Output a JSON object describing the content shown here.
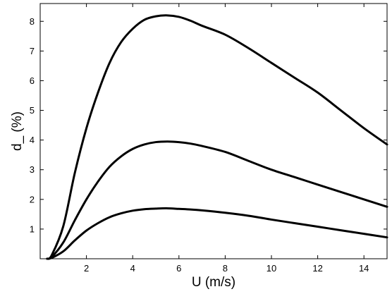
{
  "chart_data": {
    "type": "line",
    "title": "",
    "xlabel": "U (m/s)",
    "ylabel": "d_  (%)",
    "xlim": [
      0,
      15
    ],
    "ylim": [
      0,
      8.6
    ],
    "xticks": [
      2,
      4,
      6,
      8,
      10,
      12,
      14
    ],
    "yticks": [
      1,
      2,
      3,
      4,
      5,
      6,
      7,
      8
    ],
    "grid": false,
    "line_color": "#000000",
    "series": [
      {
        "x": [
          0.3,
          0.5,
          1,
          1.5,
          2,
          2.5,
          3,
          3.5,
          4,
          4.5,
          5,
          5.5,
          6,
          6.5,
          7,
          8,
          9,
          10,
          11,
          12,
          13,
          14,
          15
        ],
        "values": [
          0,
          0.12,
          1.1,
          2.9,
          4.4,
          5.6,
          6.6,
          7.3,
          7.75,
          8.05,
          8.17,
          8.2,
          8.15,
          8.02,
          7.85,
          7.55,
          7.1,
          6.6,
          6.1,
          5.6,
          5.0,
          4.4,
          3.85
        ]
      },
      {
        "x": [
          0.3,
          0.5,
          1,
          1.5,
          2,
          2.5,
          3,
          3.5,
          4,
          4.5,
          5,
          5.5,
          6,
          6.5,
          7,
          8,
          9,
          10,
          11,
          12,
          13,
          14,
          15
        ],
        "values": [
          0,
          0.06,
          0.55,
          1.3,
          2.0,
          2.6,
          3.1,
          3.45,
          3.7,
          3.85,
          3.93,
          3.95,
          3.93,
          3.88,
          3.8,
          3.6,
          3.3,
          3.0,
          2.75,
          2.5,
          2.25,
          2.0,
          1.75
        ]
      },
      {
        "x": [
          0.3,
          0.5,
          1,
          1.5,
          2,
          2.5,
          3,
          3.5,
          4,
          4.5,
          5,
          5.5,
          6,
          6.5,
          7,
          8,
          9,
          10,
          11,
          12,
          13,
          14,
          15
        ],
        "values": [
          0,
          0.03,
          0.25,
          0.62,
          0.95,
          1.2,
          1.4,
          1.53,
          1.62,
          1.67,
          1.69,
          1.7,
          1.68,
          1.66,
          1.63,
          1.55,
          1.45,
          1.32,
          1.2,
          1.08,
          0.96,
          0.84,
          0.72
        ]
      }
    ]
  }
}
